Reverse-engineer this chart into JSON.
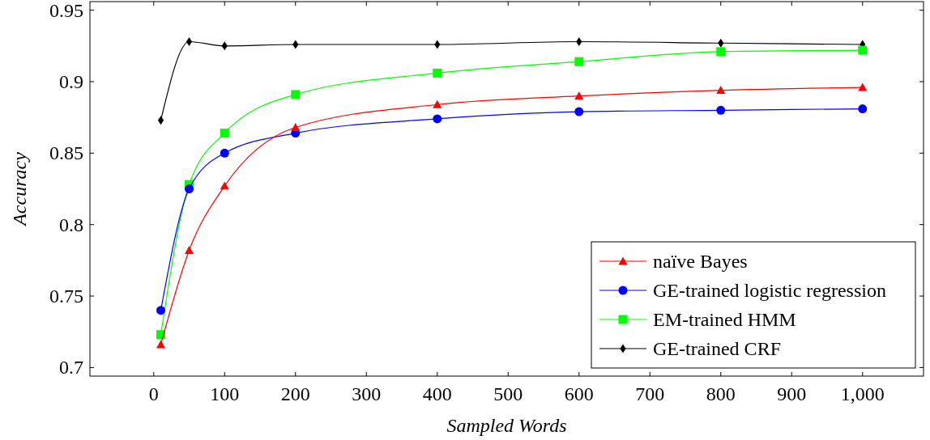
{
  "chart_data": {
    "type": "line",
    "xlabel": "Sampled Words",
    "ylabel": "Accuracy",
    "x": [
      10,
      50,
      100,
      200,
      400,
      600,
      800,
      1000
    ],
    "xlim": [
      -90,
      1086
    ],
    "ylim": [
      0.694,
      0.956
    ],
    "xticks": [
      0,
      100,
      200,
      300,
      400,
      500,
      600,
      700,
      800,
      900,
      {
        "value": 1000,
        "label": "1,000"
      }
    ],
    "yticks": [
      0.7,
      0.75,
      0.8,
      0.85,
      0.9,
      0.95
    ],
    "legend": "bottom right",
    "grid": false,
    "series": [
      {
        "name": "naïve Bayes",
        "color": "#ff0000",
        "marker": "triangle",
        "values": [
          0.716,
          0.782,
          0.827,
          0.868,
          0.884,
          0.89,
          0.894,
          0.896
        ]
      },
      {
        "name": "GE-trained logistic regression",
        "color": "#0000ff",
        "marker": "circle",
        "values": [
          0.74,
          0.825,
          0.85,
          0.864,
          0.874,
          0.879,
          0.88,
          0.881
        ]
      },
      {
        "name": "EM-trained HMM",
        "color": "#00ff00",
        "marker": "square",
        "values": [
          0.723,
          0.828,
          0.864,
          0.891,
          0.906,
          0.914,
          0.921,
          0.922
        ]
      },
      {
        "name": "GE-trained CRF",
        "color": "#000000",
        "marker": "diamond",
        "values": [
          0.873,
          0.928,
          0.925,
          0.926,
          0.926,
          0.928,
          0.927,
          0.926
        ]
      }
    ]
  }
}
